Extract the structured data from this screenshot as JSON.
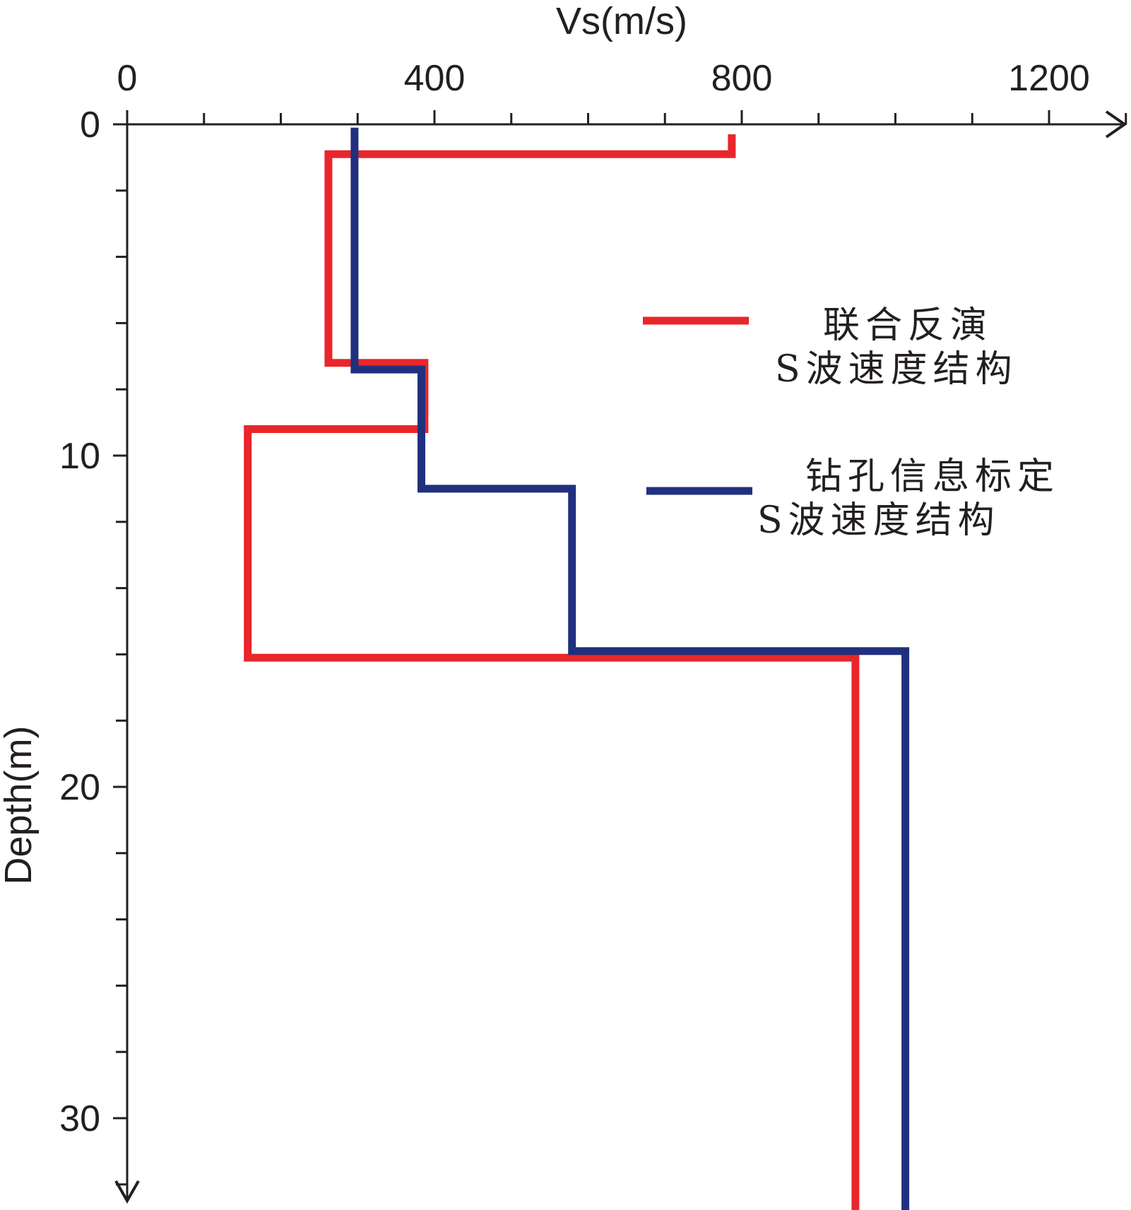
{
  "chart_data": {
    "type": "line",
    "xlabel": "Vs(m/s)",
    "ylabel": "Depth(m)",
    "x_axis_position": "top",
    "y_axis_inverted": true,
    "xlim": [
      0,
      1300
    ],
    "ylim": [
      0,
      33
    ],
    "x_ticks": [
      0,
      400,
      800,
      1200
    ],
    "x_tick_labels": [
      "0",
      "400",
      "800",
      "1200"
    ],
    "x_minor_step": 100,
    "y_ticks": [
      0,
      10,
      20,
      30
    ],
    "y_tick_labels": [
      "0",
      "10",
      "20",
      "30"
    ],
    "y_minor_step": 2,
    "grid": false,
    "legend_position": "right-middle",
    "series": [
      {
        "name": "联合反演\nS波速度结构",
        "legend_lines": [
          "联合反演",
          "S波速度结构"
        ],
        "color": "#e8262c",
        "points": [
          [
            787,
            0.3
          ],
          [
            787,
            0.9
          ],
          [
            262,
            0.9
          ],
          [
            262,
            7.2
          ],
          [
            387,
            7.2
          ],
          [
            387,
            9.2
          ],
          [
            157,
            9.2
          ],
          [
            157,
            16.1
          ],
          [
            948,
            16.1
          ],
          [
            948,
            32.8
          ]
        ]
      },
      {
        "name": "钻孔信息标定\nS波速度结构",
        "legend_lines": [
          "钻孔信息标定",
          "S波速度结构"
        ],
        "color": "#21307e",
        "points": [
          [
            296,
            0.1
          ],
          [
            296,
            7.4
          ],
          [
            383,
            7.4
          ],
          [
            383,
            11.0
          ],
          [
            579,
            11.0
          ],
          [
            579,
            15.9
          ],
          [
            1013,
            15.9
          ],
          [
            1013,
            32.8
          ]
        ]
      }
    ]
  }
}
